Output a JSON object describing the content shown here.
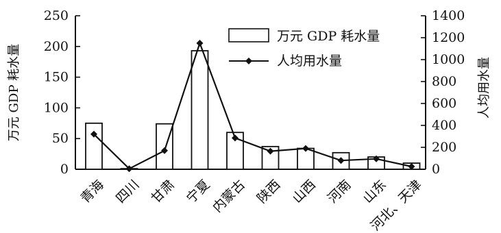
{
  "chart_data": {
    "type": "bar",
    "categories": [
      "青海",
      "四川",
      "甘肃",
      "宁夏",
      "内蒙古",
      "陕西",
      "山西",
      "河南",
      "山东",
      "河北、天津"
    ],
    "series": [
      {
        "name": "万元 GDP 耗水量",
        "type": "bar",
        "axis": "left",
        "values": [
          75,
          1,
          74,
          193,
          60,
          37,
          34,
          27,
          20,
          10
        ]
      },
      {
        "name": "人均用水量",
        "type": "line",
        "axis": "right",
        "values": [
          320,
          5,
          170,
          1150,
          285,
          165,
          190,
          80,
          95,
          25
        ]
      }
    ],
    "ylabel": "万元 GDP 耗水量",
    "y2label": "人均用水量",
    "ylim": [
      0,
      250
    ],
    "y2lim": [
      0,
      1400
    ],
    "yticks": [
      0,
      50,
      100,
      150,
      200,
      250
    ],
    "y2ticks": [
      0,
      200,
      400,
      600,
      800,
      1000,
      1200,
      1400
    ],
    "legend_position": "top-right",
    "grid": false
  },
  "colors": {
    "axis": "#111111",
    "bar_fill": "#ffffff",
    "bar_stroke": "#111111",
    "line": "#111111"
  }
}
